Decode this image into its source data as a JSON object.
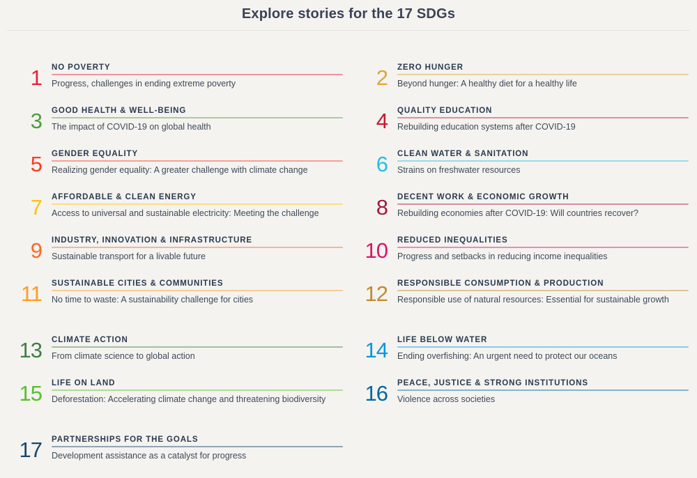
{
  "page": {
    "title": "Explore stories for the 17 SDGs"
  },
  "colors": {
    "background": "#F4F3F0",
    "heading_text": "#3A4356",
    "item_title_text": "#2B3A4E",
    "item_desc_text": "#3E4A57",
    "divider": "#E4E3DF"
  },
  "sdgs": [
    {
      "number": "1",
      "title": "NO POVERTY",
      "description": "Progress, challenges in ending extreme poverty",
      "color": "#E5243B"
    },
    {
      "number": "2",
      "title": "ZERO HUNGER",
      "description": "Beyond hunger: A healthy diet for a healthy life",
      "color": "#DDA63A"
    },
    {
      "number": "3",
      "title": "GOOD HEALTH & WELL-BEING",
      "description": "The impact of COVID-19 on global health",
      "color": "#4C9F38"
    },
    {
      "number": "4",
      "title": "QUALITY EDUCATION",
      "description": "Rebuilding education systems after COVID-19",
      "color": "#C5192D"
    },
    {
      "number": "5",
      "title": "GENDER EQUALITY",
      "description": "Realizing gender equality: A greater challenge with climate change",
      "color": "#FF3A21"
    },
    {
      "number": "6",
      "title": "CLEAN WATER & SANITATION",
      "description": "Strains on freshwater resources",
      "color": "#26BDE2"
    },
    {
      "number": "7",
      "title": "AFFORDABLE & CLEAN ENERGY",
      "description": "Access to universal and sustainable electricity: Meeting the challenge",
      "color": "#FCC30B"
    },
    {
      "number": "8",
      "title": "DECENT WORK & ECONOMIC GROWTH",
      "description": "Rebuilding economies after COVID-19: Will countries recover?",
      "color": "#A21942"
    },
    {
      "number": "9",
      "title": "INDUSTRY, INNOVATION & INFRASTRUCTURE",
      "description": "Sustainable transport for a livable future",
      "color": "#FD6925"
    },
    {
      "number": "10",
      "title": "REDUCED INEQUALITIES",
      "description": "Progress and setbacks in reducing income inequalities",
      "color": "#DD1367"
    },
    {
      "number": "11",
      "title": "SUSTAINABLE CITIES & COMMUNITIES",
      "description": "No time to waste: A sustainability challenge for cities",
      "color": "#FD9D24"
    },
    {
      "number": "12",
      "title": "RESPONSIBLE CONSUMPTION & PRODUCTION",
      "description": "Responsible use of natural resources: Essential for sustainable growth",
      "color": "#BF8B2E"
    },
    {
      "number": "13",
      "title": "CLIMATE ACTION",
      "description": "From climate science to global action",
      "color": "#3F7E44"
    },
    {
      "number": "14",
      "title": "LIFE BELOW WATER",
      "description": "Ending overfishing: An urgent need to protect our oceans",
      "color": "#0A97D9"
    },
    {
      "number": "15",
      "title": "LIFE ON LAND",
      "description": "Deforestation: Accelerating climate change and threatening biodiversity",
      "color": "#56C02B"
    },
    {
      "number": "16",
      "title": "PEACE, JUSTICE & STRONG INSTITUTIONS",
      "description": "Violence across societies",
      "color": "#00689D"
    },
    {
      "number": "17",
      "title": "PARTNERSHIPS FOR THE GOALS",
      "description": "Development assistance as a catalyst for progress",
      "color": "#19486A"
    }
  ]
}
